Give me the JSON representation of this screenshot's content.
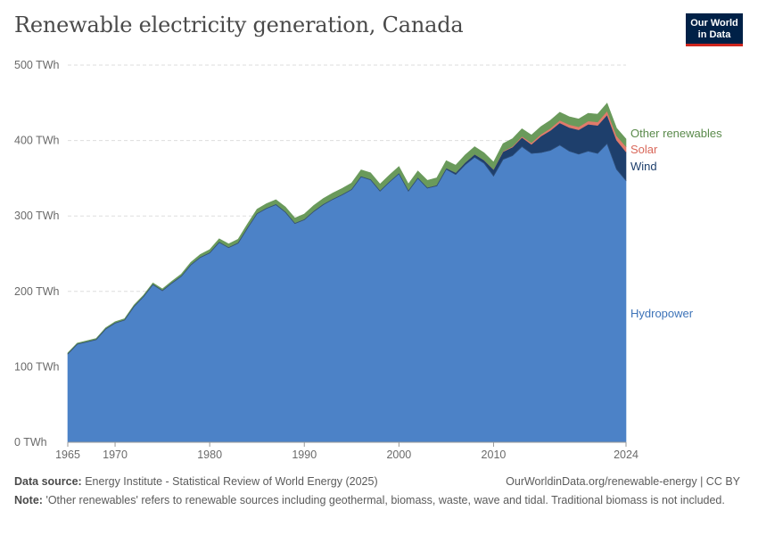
{
  "header": {
    "title": "Renewable electricity generation, Canada",
    "logo_line1": "Our World",
    "logo_line2": "in Data"
  },
  "footer": {
    "source_label": "Data source:",
    "source_text": "Energy Institute - Statistical Review of World Energy (2025)",
    "url_text": "OurWorldinData.org/renewable-energy | CC BY",
    "note_label": "Note:",
    "note_text": "'Other renewables' refers to renewable sources including geothermal, biomass, waste, wave and tidal. Traditional biomass is not included."
  },
  "chart_data": {
    "type": "area",
    "stacked": true,
    "title": "Renewable electricity generation, Canada",
    "ylim": [
      0,
      500
    ],
    "y_ticks": [
      0,
      100,
      200,
      300,
      400,
      500
    ],
    "y_tick_labels": [
      "0 TWh",
      "100 TWh",
      "200 TWh",
      "300 TWh",
      "400 TWh",
      "500 TWh"
    ],
    "x_ticks": [
      1965,
      1970,
      1980,
      1990,
      2000,
      2010,
      2024
    ],
    "xlim": [
      1965,
      2024
    ],
    "grid": true,
    "legend_placement": "inline-right",
    "x": [
      1965,
      1966,
      1967,
      1968,
      1969,
      1970,
      1971,
      1972,
      1973,
      1974,
      1975,
      1976,
      1977,
      1978,
      1979,
      1980,
      1981,
      1982,
      1983,
      1984,
      1985,
      1986,
      1987,
      1988,
      1989,
      1990,
      1991,
      1992,
      1993,
      1994,
      1995,
      1996,
      1997,
      1998,
      1999,
      2000,
      2001,
      2002,
      2003,
      2004,
      2005,
      2006,
      2007,
      2008,
      2009,
      2010,
      2011,
      2012,
      2013,
      2014,
      2015,
      2016,
      2017,
      2018,
      2019,
      2020,
      2021,
      2022,
      2023,
      2024
    ],
    "series": [
      {
        "name": "Hydropower",
        "color": "#4c82c7",
        "values": [
          117,
          130,
          133,
          136,
          150,
          158,
          162,
          180,
          193,
          209,
          201,
          211,
          220,
          235,
          245,
          251,
          265,
          258,
          264,
          284,
          303,
          310,
          315,
          305,
          290,
          295,
          306,
          315,
          322,
          328,
          335,
          352,
          348,
          333,
          345,
          356,
          333,
          350,
          337,
          340,
          362,
          355,
          368,
          378,
          370,
          353,
          375,
          380,
          392,
          383,
          384,
          387,
          394,
          386,
          382,
          386,
          383,
          396,
          362,
          347
        ]
      },
      {
        "name": "Wind",
        "color": "#1e3f6c",
        "values": [
          0,
          0,
          0,
          0,
          0,
          0,
          0,
          0,
          0,
          0,
          0,
          0,
          0,
          0,
          0,
          0,
          0,
          0,
          0,
          0,
          0,
          0,
          0,
          0,
          0,
          0,
          0,
          0,
          0,
          0.1,
          0.1,
          0.1,
          0.1,
          0.2,
          0.3,
          0.3,
          0.4,
          0.4,
          0.8,
          1.0,
          1.6,
          2.5,
          3.0,
          3.8,
          4.1,
          8.7,
          10.2,
          11.3,
          12.1,
          12.0,
          21.7,
          26.2,
          29.4,
          31.3,
          32.2,
          35.6,
          37.0,
          38.0,
          38.5,
          38.0
        ]
      },
      {
        "name": "Solar",
        "color": "#e07a6b",
        "values": [
          0,
          0,
          0,
          0,
          0,
          0,
          0,
          0,
          0,
          0,
          0,
          0,
          0,
          0,
          0,
          0,
          0,
          0,
          0,
          0,
          0,
          0,
          0,
          0,
          0,
          0,
          0,
          0,
          0,
          0,
          0,
          0,
          0,
          0,
          0,
          0,
          0,
          0,
          0,
          0,
          0,
          0,
          0,
          0.1,
          0.1,
          0.3,
          0.7,
          1.0,
          1.5,
          2.1,
          2.5,
          3.0,
          3.5,
          3.8,
          4.0,
          4.3,
          4.6,
          5.2,
          5.9,
          7.0
        ]
      },
      {
        "name": "Other renewables",
        "color": "#6a9a5b",
        "values": [
          1.5,
          1.5,
          1.6,
          1.6,
          1.7,
          1.8,
          1.8,
          1.9,
          2.0,
          2.2,
          2.3,
          2.5,
          3.0,
          3.5,
          4.0,
          4.4,
          4.8,
          5.0,
          5.2,
          5.6,
          6.0,
          6.3,
          6.6,
          7.0,
          7.3,
          7.6,
          8.0,
          8.2,
          8.4,
          8.5,
          8.6,
          9.0,
          9.2,
          9.0,
          9.1,
          9.3,
          9.0,
          9.3,
          9.4,
          9.6,
          9.8,
          9.8,
          9.9,
          10.0,
          9.6,
          9.5,
          10.0,
          10.1,
          10.0,
          10.2,
          10.3,
          10.5,
          10.6,
          10.5,
          10.4,
          10.2,
          10.4,
          10.3,
          10.1,
          10.0
        ]
      }
    ],
    "series_label_colors": {
      "Hydropower": "#3d73b8",
      "Wind": "#1e3f6c",
      "Solar": "#d9685a",
      "Other renewables": "#5a8a4b"
    }
  }
}
